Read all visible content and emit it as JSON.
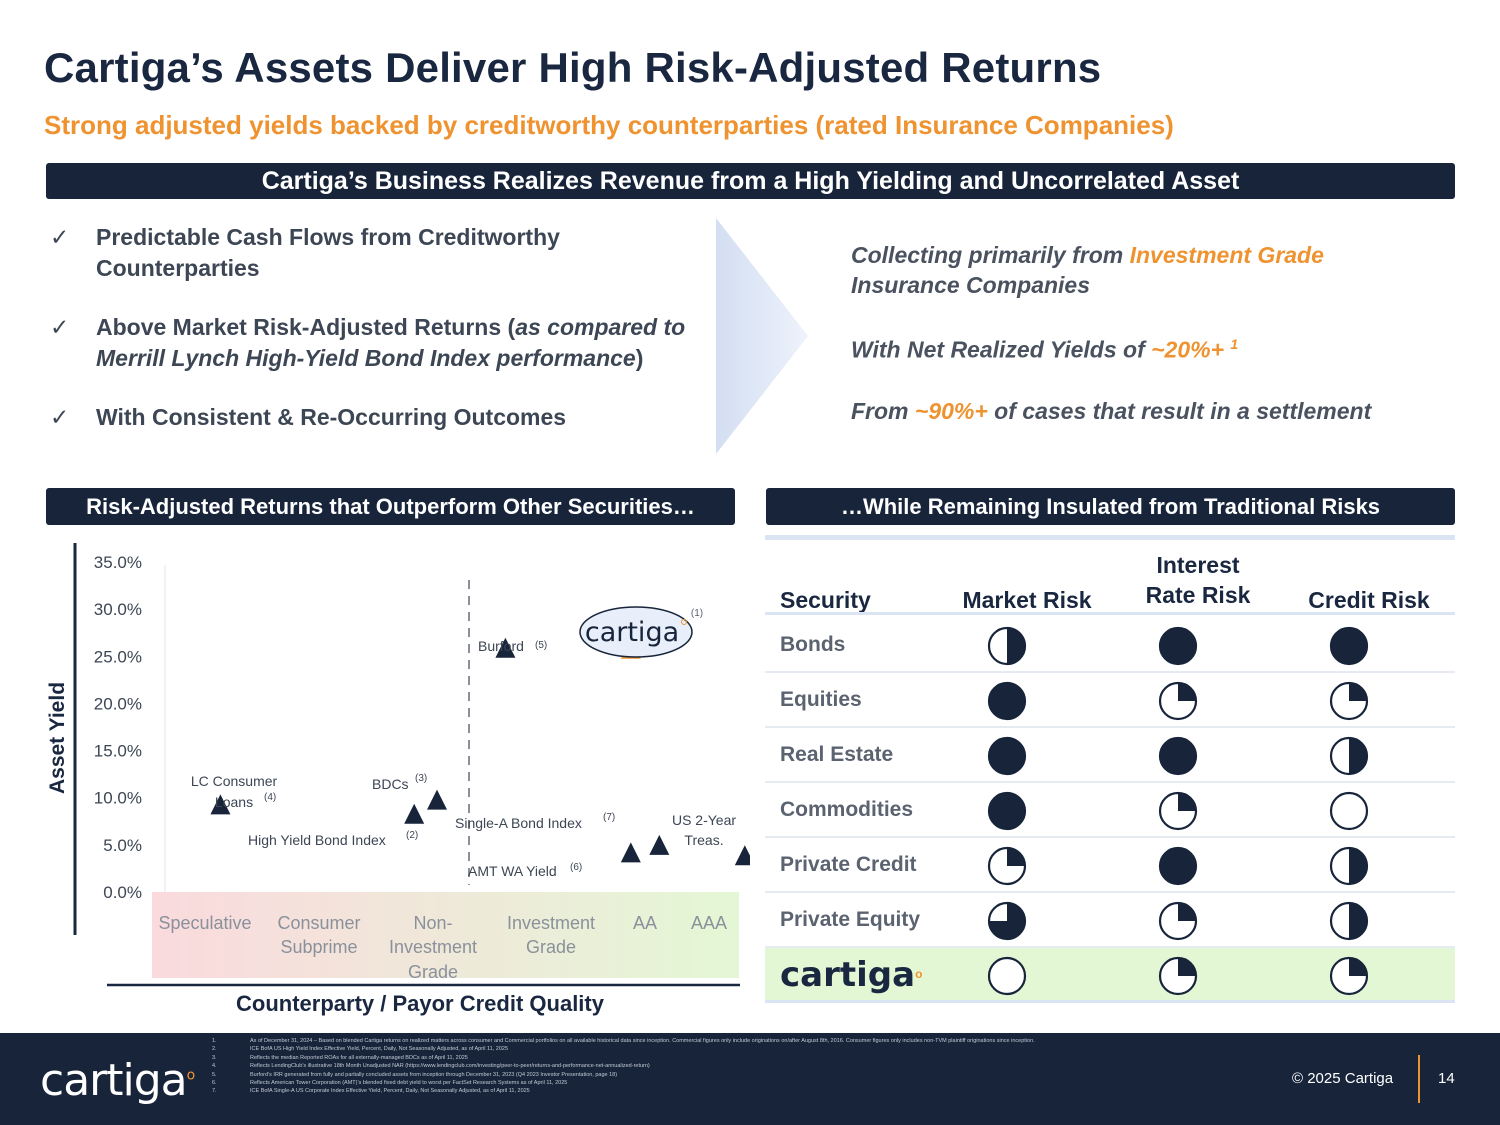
{
  "header": {
    "title": "Cartiga’s Assets Deliver High Risk-Adjusted Returns",
    "subtitle": "Strong adjusted yields backed by creditworthy counterparties (rated Insurance Companies)"
  },
  "banners": {
    "main": "Cartiga’s Business Realizes Revenue from a High Yielding and Uncorrelated Asset",
    "left": "Risk-Adjusted Returns that Outperform Other Securities…",
    "right": "…While Remaining Insulated from Traditional Risks"
  },
  "bullets": {
    "check": "✓",
    "b1_line1": "Predictable Cash Flows from Creditworthy",
    "b1_line2": "Counterparties",
    "b2_line1_a": "Above Market Risk-Adjusted Returns (",
    "b2_line1_b": "as compared to",
    "b2_line2_a": "Merrill Lynch High-Yield Bond Index performance",
    "b2_line2_b": ")",
    "b3": "With Consistent & Re-Occurring Outcomes"
  },
  "claims": {
    "c1_a": "Collecting primarily from ",
    "c1_b": "Investment Grade",
    "c1_c": "Insurance Companies",
    "c2_a": "With Net Realized Yields of ",
    "c2_b": "~20%+",
    "c2_sup": "1",
    "c3_a": "From ",
    "c3_b": "~90%+",
    "c3_c": " of cases that result in a settlement"
  },
  "chart_data": {
    "type": "scatter",
    "ylabel": "Asset Yield",
    "xlabel": "Counterparty / Payor Credit Quality",
    "ylim": [
      0,
      35
    ],
    "y_ticks": [
      "35.0%",
      "30.0%",
      "25.0%",
      "20.0%",
      "15.0%",
      "10.0%",
      "5.0%",
      "0.0%"
    ],
    "x_categories": [
      "Speculative",
      "Consumer Subprime",
      "Non-Investment Grade",
      "Investment Grade",
      "AA",
      "AAA"
    ],
    "points": [
      {
        "label": "LC Consumer Loans",
        "note": "(4)",
        "x": 1.1,
        "y": 9.3
      },
      {
        "label": "High Yield Bond Index",
        "note": "(2)",
        "x": 2.8,
        "y": 8.3
      },
      {
        "label": "BDCs",
        "note": "(3)",
        "x": 3.0,
        "y": 9.8
      },
      {
        "label": "Burford",
        "note": "(5)",
        "x": 3.6,
        "y": 25.9
      },
      {
        "label": "Cartiga",
        "note": "(1)",
        "x": 4.7,
        "y": 25.8,
        "highlight": true
      },
      {
        "label": "AMT WA Yield",
        "note": "(6)",
        "x": 4.7,
        "y": 4.2
      },
      {
        "label": "Single-A Bond Index",
        "note": "(7)",
        "x": 4.95,
        "y": 5.0
      },
      {
        "label": "US 2-Year Treas.",
        "note": "",
        "x": 5.7,
        "y": 3.9
      }
    ],
    "colors": {
      "point": "#17243a",
      "highlight": "#ee9330",
      "gradient_left": "#fadadd",
      "gradient_right": "#e4f7d5"
    }
  },
  "chart_text": {
    "cartiga_logo": "cartiga",
    "lc_line1": "LC Consumer",
    "lc_line2": "Loans",
    "hy": "High Yield Bond Index",
    "bdc": "BDCs",
    "burford": "Burford",
    "singlea": "Single-A Bond Index",
    "amt": "AMT WA Yield",
    "us_line1": "US 2-Year",
    "us_line2": "Treas.",
    "cat_speculative": "Speculative",
    "cat_consumer1": "Consumer",
    "cat_consumer2": "Subprime",
    "cat_noninv1": "Non-",
    "cat_noninv2": "Investment",
    "cat_noninv3": "Grade",
    "cat_inv1": "Investment",
    "cat_inv2": "Grade",
    "cat_aa": "AA",
    "cat_aaa": "AAA",
    "n1": "(1)",
    "n2": "(2)",
    "n3": "(3)",
    "n4": "(4)",
    "n5": "(5)",
    "n6": "(6)",
    "n7": "(7)"
  },
  "risk_table": {
    "headers": [
      "Security",
      "Market Risk",
      "Interest Rate Risk",
      "Credit Risk"
    ],
    "header_ir_line1": "Interest",
    "header_ir_line2": "Rate Risk",
    "rows": [
      {
        "label": "Bonds",
        "market": 0.5,
        "interest": 1.0,
        "credit": 1.0
      },
      {
        "label": "Equities",
        "market": 1.0,
        "interest": 0.25,
        "credit": 0.25
      },
      {
        "label": "Real Estate",
        "market": 1.0,
        "interest": 1.0,
        "credit": 0.5
      },
      {
        "label": "Commodities",
        "market": 1.0,
        "interest": 0.25,
        "credit": 0.0
      },
      {
        "label": "Private Credit",
        "market": 0.25,
        "interest": 1.0,
        "credit": 0.5
      },
      {
        "label": "Private Equity",
        "market": 0.75,
        "interest": 0.25,
        "credit": 0.5
      },
      {
        "label": "cartiga",
        "market": 0.0,
        "interest": 0.25,
        "credit": 0.25,
        "highlight": true
      }
    ],
    "colors": {
      "fill": "#17243a",
      "highlight_row": "#e4f7d5"
    }
  },
  "footer": {
    "logo": "cartiga",
    "copyright": "© 2025 Cartiga",
    "page": "14",
    "notes": [
      {
        "num": "1.",
        "text": "As of December 31, 2024 – Based on blended Cartiga returns on realized matters across consumer and Commercial portfolios on all available historical data since inception. Commercial figures only include originations on/after August 8th, 2016. Consumer figures only includes non-TVM plaintiff originations since inception."
      },
      {
        "num": "2.",
        "text": "ICE BofA US High Yield Index Effective Yield, Percent, Daily, Not Seasonally Adjusted, as of April 11, 2025"
      },
      {
        "num": "3.",
        "text": "Reflects the median Reported ROAs for all externally-managed BDCs as of April 11, 2025"
      },
      {
        "num": "4.",
        "text": "Reflects LendingClub’s illustrative 18th Month Unadjusted NAR (https://www.lendingclub.com/investing/peer-to-peer/returns-and-performance-net-annualized-return)"
      },
      {
        "num": "5.",
        "text": "Burford’s IRR generated from fully and partially concluded assets from inception through December 31, 2023 (Q4 2023 Investor Presentation, page 18)"
      },
      {
        "num": "6.",
        "text": "Reflects American Tower Corporation (AMT)’s blended fixed debt yield to worst per FactSet Research Systems as of April 11, 2025"
      },
      {
        "num": "7.",
        "text": "ICE BofA Single-A US Corporate Index Effective Yield, Percent, Daily, Not Seasonally Adjusted, as of April 11, 2025"
      }
    ]
  }
}
